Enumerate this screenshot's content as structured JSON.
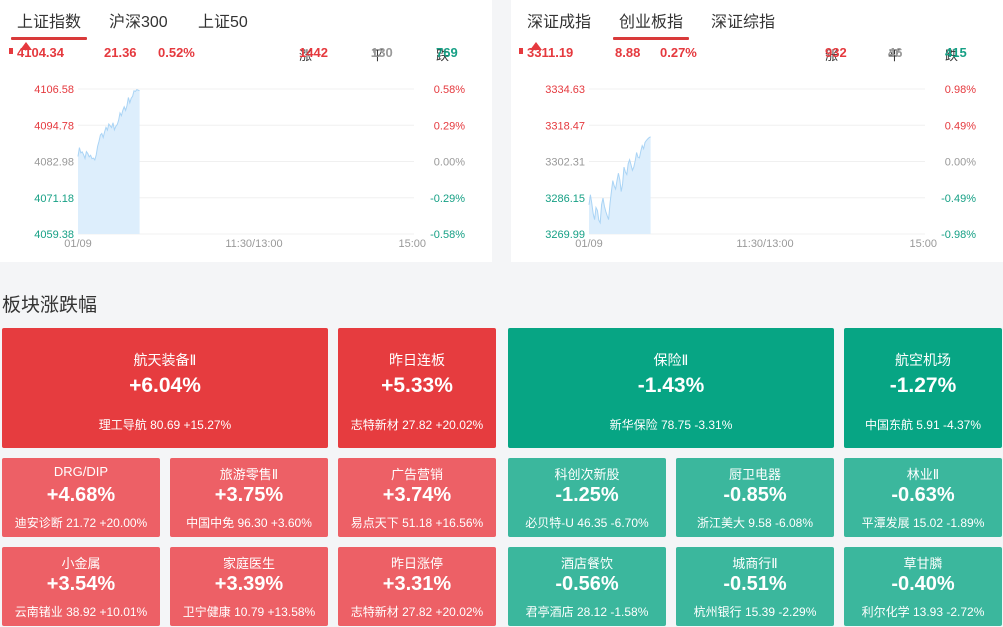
{
  "left_panel": {
    "tabs": [
      "上证指数",
      "沪深300",
      "上证50"
    ],
    "active_tab": 0,
    "price": "4104.34",
    "change": "21.36",
    "change_pct": "0.52%",
    "up_label": "涨",
    "up_count": "1442",
    "flat_label": "平",
    "flat_count": "130",
    "down_label": "跌",
    "down_count": "769",
    "y_left": [
      "4106.58",
      "4094.78",
      "4082.98",
      "4071.18",
      "4059.38"
    ],
    "y_right": [
      "0.58%",
      "0.29%",
      "0.00%",
      "-0.29%",
      "-0.58%"
    ],
    "x_labels": [
      "01/09",
      "11:30/13:00",
      "15:00"
    ]
  },
  "right_panel": {
    "tabs": [
      "深证成指",
      "创业板指",
      "深证综指"
    ],
    "active_tab": 1,
    "price": "3311.19",
    "change": "8.88",
    "change_pct": "0.27%",
    "up_label": "涨",
    "up_count": "932",
    "flat_label": "平",
    "flat_count": "46",
    "down_label": "跌",
    "down_count": "415",
    "y_left": [
      "3334.63",
      "3318.47",
      "3302.31",
      "3286.15",
      "3269.99"
    ],
    "y_right": [
      "0.98%",
      "0.49%",
      "0.00%",
      "-0.49%",
      "-0.98%"
    ],
    "x_labels": [
      "01/09",
      "11:30/13:00",
      "15:00"
    ]
  },
  "chart_data": [
    {
      "type": "area",
      "title": "上证指数",
      "x_range": [
        "09:30",
        "15:00"
      ],
      "ylim": [
        4059.38,
        4106.58
      ],
      "grid": true,
      "x": [
        0,
        1,
        2,
        3,
        4,
        5,
        6,
        7,
        8,
        9,
        10,
        11,
        12,
        13,
        14,
        15,
        16,
        17,
        18,
        19,
        20,
        21,
        22,
        23,
        24,
        25,
        26,
        27,
        28,
        29,
        30,
        31,
        32,
        33,
        34,
        35,
        36,
        37,
        38,
        39,
        40,
        41,
        42,
        43,
        44
      ],
      "values": [
        4084.6,
        4087.5,
        4085.8,
        4086.1,
        4085.2,
        4084.0,
        4086.2,
        4085.6,
        4084.5,
        4085.0,
        4083.9,
        4084.1,
        4083.5,
        4085.1,
        4087.9,
        4089.6,
        4091.6,
        4092.1,
        4090.8,
        4092.6,
        4094.1,
        4093.2,
        4095.2,
        4094.6,
        4094.0,
        4095.6,
        4093.3,
        4094.4,
        4095.0,
        4096.4,
        4098.8,
        4097.9,
        4099.6,
        4100.8,
        4099.6,
        4101.2,
        4103.8,
        4102.1,
        4103.6,
        4104.2,
        4106.0,
        4105.8,
        4106.4,
        4106.2,
        4106.0
      ],
      "color": "#aad4f5"
    },
    {
      "type": "area",
      "title": "创业板指",
      "x_range": [
        "09:30",
        "15:00"
      ],
      "ylim": [
        3269.99,
        3334.63
      ],
      "grid": true,
      "x": [
        0,
        1,
        2,
        3,
        4,
        5,
        6,
        7,
        8,
        9,
        10,
        11,
        12,
        13,
        14,
        15,
        16,
        17,
        18,
        19,
        20,
        21,
        22,
        23,
        24,
        25,
        26,
        27,
        28,
        29,
        30,
        31,
        32,
        33,
        34,
        35,
        36,
        37,
        38,
        39,
        40,
        41,
        42,
        43,
        44
      ],
      "values": [
        3283.0,
        3287.5,
        3283.6,
        3279.0,
        3276.4,
        3281.8,
        3280.5,
        3276.2,
        3275.0,
        3283.1,
        3286.0,
        3282.4,
        3280.0,
        3278.1,
        3276.4,
        3283.6,
        3288.9,
        3293.8,
        3291.4,
        3290.0,
        3293.8,
        3297.1,
        3294.2,
        3288.9,
        3292.4,
        3299.8,
        3297.6,
        3296.5,
        3301.3,
        3303.1,
        3300.9,
        3298.4,
        3299.8,
        3302.6,
        3306.3,
        3304.2,
        3303.9,
        3306.9,
        3309.4,
        3308.0,
        3310.8,
        3311.7,
        3312.4,
        3313.0,
        3313.3
      ],
      "color": "#aad4f5"
    }
  ],
  "section_title": "板块涨跌幅",
  "sectors": [
    {
      "name": "航天装备Ⅱ",
      "pct": "+6.04%",
      "stock": "理工导航",
      "price": "80.69",
      "stock_pct": "+15.27%"
    },
    {
      "name": "昨日连板",
      "pct": "+5.33%",
      "stock": "志特新材",
      "price": "27.82",
      "stock_pct": "+20.02%"
    },
    {
      "name": "保险Ⅱ",
      "pct": "-1.43%",
      "stock": "新华保险",
      "price": "78.75",
      "stock_pct": "-3.31%"
    },
    {
      "name": "航空机场",
      "pct": "-1.27%",
      "stock": "中国东航",
      "price": "5.91",
      "stock_pct": "-4.37%"
    },
    {
      "name": "DRG/DIP",
      "pct": "+4.68%",
      "stock": "迪安诊断",
      "price": "21.72",
      "stock_pct": "+20.00%"
    },
    {
      "name": "旅游零售Ⅱ",
      "pct": "+3.75%",
      "stock": "中国中免",
      "price": "96.30",
      "stock_pct": "+3.60%"
    },
    {
      "name": "广告营销",
      "pct": "+3.74%",
      "stock": "易点天下",
      "price": "51.18",
      "stock_pct": "+16.56%"
    },
    {
      "name": "科创次新股",
      "pct": "-1.25%",
      "stock": "必贝特-U",
      "price": "46.35",
      "stock_pct": "-6.70%"
    },
    {
      "name": "厨卫电器",
      "pct": "-0.85%",
      "stock": "浙江美大",
      "price": "9.58",
      "stock_pct": "-6.08%"
    },
    {
      "name": "林业Ⅱ",
      "pct": "-0.63%",
      "stock": "平潭发展",
      "price": "15.02",
      "stock_pct": "-1.89%"
    },
    {
      "name": "小金属",
      "pct": "+3.54%",
      "stock": "云南锗业",
      "price": "38.92",
      "stock_pct": "+10.01%"
    },
    {
      "name": "家庭医生",
      "pct": "+3.39%",
      "stock": "卫宁健康",
      "price": "10.79",
      "stock_pct": "+13.58%"
    },
    {
      "name": "昨日涨停",
      "pct": "+3.31%",
      "stock": "志特新材",
      "price": "27.82",
      "stock_pct": "+20.02%"
    },
    {
      "name": "酒店餐饮",
      "pct": "-0.56%",
      "stock": "君亭酒店",
      "price": "28.12",
      "stock_pct": "-1.58%"
    },
    {
      "name": "城商行Ⅱ",
      "pct": "-0.51%",
      "stock": "杭州银行",
      "price": "15.39",
      "stock_pct": "-2.29%"
    },
    {
      "name": "草甘膦",
      "pct": "-0.40%",
      "stock": "利尔化学",
      "price": "13.93",
      "stock_pct": "-2.72%"
    }
  ]
}
